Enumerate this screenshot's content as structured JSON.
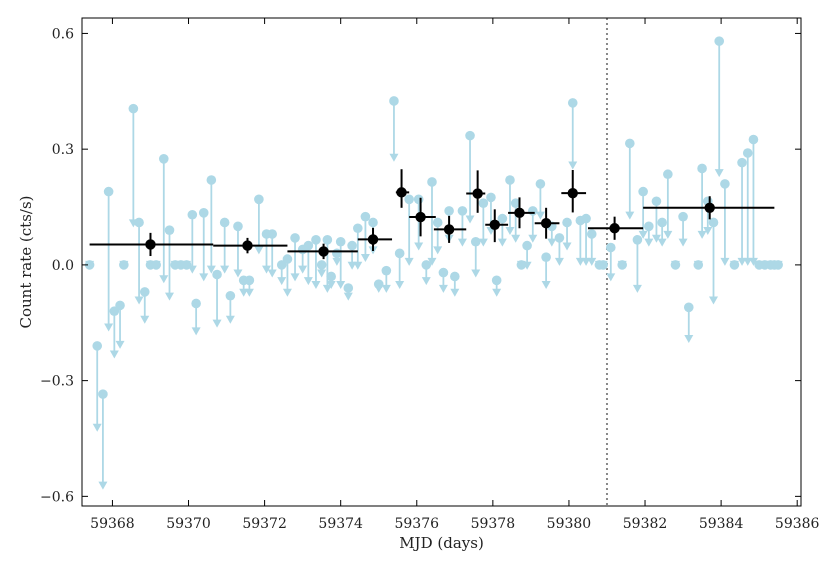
{
  "chart_data": {
    "type": "scatter",
    "xlabel": "MJD (days)",
    "ylabel": "Count rate (cts/s)",
    "xlim": [
      59367.2,
      59386.1
    ],
    "ylim": [
      -0.625,
      0.64
    ],
    "xticks": [
      59368,
      59370,
      59372,
      59374,
      59376,
      59378,
      59380,
      59382,
      59384,
      59386
    ],
    "yticks": [
      -0.6,
      -0.3,
      0.0,
      0.3,
      0.6
    ],
    "ytick_labels": [
      "−0.6",
      "−0.3",
      "0.0",
      "0.3",
      "0.6"
    ],
    "vline": {
      "x": 59381.0,
      "style": "dotted",
      "color": "#888888"
    },
    "colors": {
      "upper_limits": "#add8e6",
      "binned": "#000000",
      "frame": "#000000"
    },
    "upper_limits": [
      [
        59367.4,
        0.0,
        0.0
      ],
      [
        59367.6,
        -0.21,
        -0.43
      ],
      [
        59367.75,
        -0.335,
        -0.58
      ],
      [
        59367.9,
        0.19,
        -0.17
      ],
      [
        59368.05,
        -0.12,
        -0.24
      ],
      [
        59368.2,
        -0.105,
        -0.215
      ],
      [
        59368.3,
        0.0,
        0.0
      ],
      [
        59368.55,
        0.405,
        0.1
      ],
      [
        59368.7,
        0.11,
        -0.1
      ],
      [
        59368.85,
        -0.07,
        -0.15
      ],
      [
        59369.0,
        0.0,
        0.0
      ],
      [
        59369.15,
        0.0,
        0.0
      ],
      [
        59369.35,
        0.275,
        -0.045
      ],
      [
        59369.5,
        0.09,
        -0.09
      ],
      [
        59369.65,
        0.0,
        0.0
      ],
      [
        59369.8,
        0.0,
        0.0
      ],
      [
        59369.95,
        0.0,
        0.0
      ],
      [
        59370.1,
        0.13,
        -0.02
      ],
      [
        59370.2,
        -0.1,
        -0.18
      ],
      [
        59370.4,
        0.135,
        -0.04
      ],
      [
        59370.6,
        0.22,
        -0.02
      ],
      [
        59370.75,
        -0.025,
        -0.16
      ],
      [
        59370.95,
        0.11,
        -0.02
      ],
      [
        59371.1,
        -0.08,
        -0.15
      ],
      [
        59371.3,
        0.1,
        -0.03
      ],
      [
        59371.45,
        -0.04,
        -0.08
      ],
      [
        59371.6,
        -0.04,
        -0.08
      ],
      [
        59371.85,
        0.17,
        0.03
      ],
      [
        59372.05,
        0.08,
        -0.02
      ],
      [
        59372.2,
        0.08,
        -0.03
      ],
      [
        59372.45,
        0.0,
        -0.05
      ],
      [
        59372.6,
        0.015,
        -0.08
      ],
      [
        59372.8,
        0.07,
        -0.04
      ],
      [
        59373.0,
        0.04,
        -0.02
      ],
      [
        59373.15,
        0.05,
        -0.05
      ],
      [
        59373.35,
        0.065,
        -0.06
      ],
      [
        59373.5,
        0.0,
        -0.03
      ],
      [
        59373.65,
        0.065,
        -0.07
      ],
      [
        59373.75,
        -0.03,
        -0.06
      ],
      [
        59373.9,
        0.03,
        0.0
      ],
      [
        59374.0,
        0.06,
        -0.06
      ],
      [
        59374.2,
        -0.06,
        -0.09
      ],
      [
        59374.3,
        0.05,
        -0.01
      ],
      [
        59374.45,
        0.095,
        -0.01
      ],
      [
        59374.65,
        0.125,
        0.01
      ],
      [
        59374.85,
        0.11,
        0.03
      ],
      [
        59375.0,
        -0.05,
        -0.07
      ],
      [
        59375.2,
        -0.015,
        -0.07
      ],
      [
        59375.4,
        0.425,
        0.27
      ],
      [
        59375.55,
        0.03,
        -0.06
      ],
      [
        59375.8,
        0.17,
        0.0
      ],
      [
        59376.05,
        0.17,
        0.04
      ],
      [
        59376.25,
        0.0,
        -0.05
      ],
      [
        59376.4,
        0.215,
        0.0
      ],
      [
        59376.55,
        0.11,
        0.03
      ],
      [
        59376.7,
        -0.02,
        -0.07
      ],
      [
        59376.85,
        0.14,
        0.06
      ],
      [
        59377.0,
        -0.03,
        -0.08
      ],
      [
        59377.2,
        0.14,
        0.05
      ],
      [
        59377.4,
        0.335,
        0.11
      ],
      [
        59377.55,
        0.06,
        -0.03
      ],
      [
        59377.75,
        0.16,
        0.05
      ],
      [
        59377.95,
        0.175,
        0.08
      ],
      [
        59378.1,
        -0.04,
        -0.08
      ],
      [
        59378.25,
        0.12,
        0.05
      ],
      [
        59378.45,
        0.22,
        0.08
      ],
      [
        59378.6,
        0.16,
        0.06
      ],
      [
        59378.75,
        0.0,
        0.0
      ],
      [
        59378.9,
        0.05,
        -0.01
      ],
      [
        59379.05,
        0.14,
        0.06
      ],
      [
        59379.25,
        0.21,
        0.12
      ],
      [
        59379.4,
        0.02,
        -0.06
      ],
      [
        59379.55,
        0.1,
        0.05
      ],
      [
        59379.75,
        0.07,
        0.0
      ],
      [
        59379.95,
        0.11,
        0.04
      ],
      [
        59380.1,
        0.42,
        0.25
      ],
      [
        59380.3,
        0.115,
        0.0
      ],
      [
        59380.45,
        0.12,
        0.0
      ],
      [
        59380.6,
        0.08,
        0.0
      ],
      [
        59380.8,
        0.0,
        0.0
      ],
      [
        59380.9,
        0.0,
        0.0
      ],
      [
        59381.1,
        0.045,
        -0.04
      ],
      [
        59381.4,
        0.0,
        0.0
      ],
      [
        59381.6,
        0.315,
        0.12
      ],
      [
        59381.8,
        0.065,
        -0.07
      ],
      [
        59381.95,
        0.19,
        0.07
      ],
      [
        59382.1,
        0.1,
        0.05
      ],
      [
        59382.3,
        0.165,
        0.06
      ],
      [
        59382.45,
        0.11,
        0.05
      ],
      [
        59382.6,
        0.235,
        0.07
      ],
      [
        59382.8,
        0.0,
        0.0
      ],
      [
        59383.0,
        0.125,
        0.05
      ],
      [
        59383.15,
        -0.11,
        -0.2
      ],
      [
        59383.4,
        0.0,
        0.0
      ],
      [
        59383.5,
        0.25,
        0.07
      ],
      [
        59383.65,
        0.165,
        0.08
      ],
      [
        59383.8,
        0.11,
        -0.1
      ],
      [
        59383.95,
        0.58,
        0.23
      ],
      [
        59384.1,
        0.21,
        0.0
      ],
      [
        59384.35,
        0.0,
        0.0
      ],
      [
        59384.55,
        0.265,
        0.0
      ],
      [
        59384.7,
        0.29,
        0.0
      ],
      [
        59384.85,
        0.325,
        0.0
      ],
      [
        59385.0,
        0.0,
        0.0
      ],
      [
        59385.15,
        0.0,
        0.0
      ],
      [
        59385.3,
        0.0,
        0.0
      ],
      [
        59385.4,
        0.0,
        0.0
      ],
      [
        59385.5,
        0.0,
        0.0
      ]
    ],
    "binned": [
      [
        59369.0,
        59367.4,
        59370.65,
        0.053,
        0.03,
        0.03
      ],
      [
        59371.55,
        59370.65,
        59372.6,
        0.05,
        0.02,
        0.02
      ],
      [
        59373.55,
        59372.6,
        59374.45,
        0.035,
        0.02,
        0.02
      ],
      [
        59374.85,
        59374.45,
        59375.35,
        0.066,
        0.03,
        0.03
      ],
      [
        59375.6,
        59375.45,
        59375.8,
        0.188,
        0.06,
        0.04
      ],
      [
        59376.1,
        59375.8,
        59376.5,
        0.124,
        0.05,
        0.05
      ],
      [
        59376.85,
        59376.45,
        59377.3,
        0.092,
        0.035,
        0.035
      ],
      [
        59377.6,
        59377.3,
        59377.8,
        0.185,
        0.06,
        0.05
      ],
      [
        59378.05,
        59377.8,
        59378.4,
        0.104,
        0.04,
        0.045
      ],
      [
        59378.7,
        59378.4,
        59379.1,
        0.135,
        0.04,
        0.04
      ],
      [
        59379.4,
        59379.1,
        59379.75,
        0.108,
        0.04,
        0.04
      ],
      [
        59380.1,
        59379.8,
        59380.45,
        0.186,
        0.06,
        0.05
      ],
      [
        59381.2,
        59380.5,
        59381.95,
        0.095,
        0.03,
        0.03
      ],
      [
        59383.7,
        59381.95,
        59385.4,
        0.148,
        0.03,
        0.03
      ]
    ]
  }
}
